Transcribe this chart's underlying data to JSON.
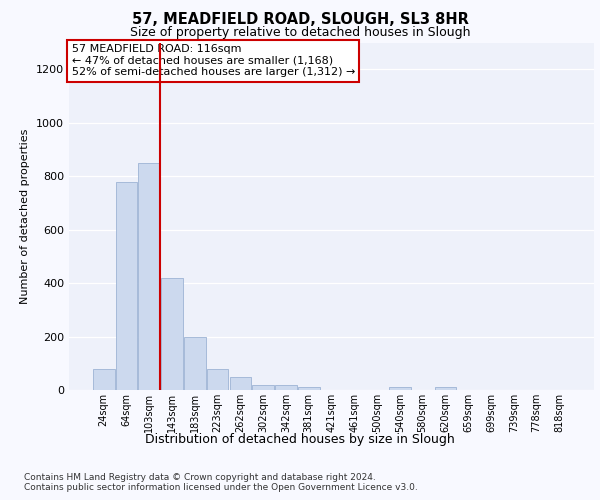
{
  "title_line1": "57, MEADFIELD ROAD, SLOUGH, SL3 8HR",
  "title_line2": "Size of property relative to detached houses in Slough",
  "xlabel": "Distribution of detached houses by size in Slough",
  "ylabel": "Number of detached properties",
  "categories": [
    "24sqm",
    "64sqm",
    "103sqm",
    "143sqm",
    "183sqm",
    "223sqm",
    "262sqm",
    "302sqm",
    "342sqm",
    "381sqm",
    "421sqm",
    "461sqm",
    "500sqm",
    "540sqm",
    "580sqm",
    "620sqm",
    "659sqm",
    "699sqm",
    "739sqm",
    "778sqm",
    "818sqm"
  ],
  "values": [
    80,
    780,
    850,
    420,
    200,
    80,
    50,
    20,
    20,
    10,
    0,
    0,
    0,
    10,
    0,
    10,
    0,
    0,
    0,
    0,
    0
  ],
  "bar_color": "#ccd9ee",
  "bar_edge_color": "#9db3d4",
  "vline_color": "#cc0000",
  "annotation_text": "57 MEADFIELD ROAD: 116sqm\n← 47% of detached houses are smaller (1,168)\n52% of semi-detached houses are larger (1,312) →",
  "annotation_box_color": "#ffffff",
  "annotation_box_edge": "#cc0000",
  "ylim": [
    0,
    1300
  ],
  "yticks": [
    0,
    200,
    400,
    600,
    800,
    1000,
    1200
  ],
  "footer_text": "Contains HM Land Registry data © Crown copyright and database right 2024.\nContains public sector information licensed under the Open Government Licence v3.0.",
  "fig_facecolor": "#f8f9ff",
  "plot_bg_color": "#eef1fa"
}
